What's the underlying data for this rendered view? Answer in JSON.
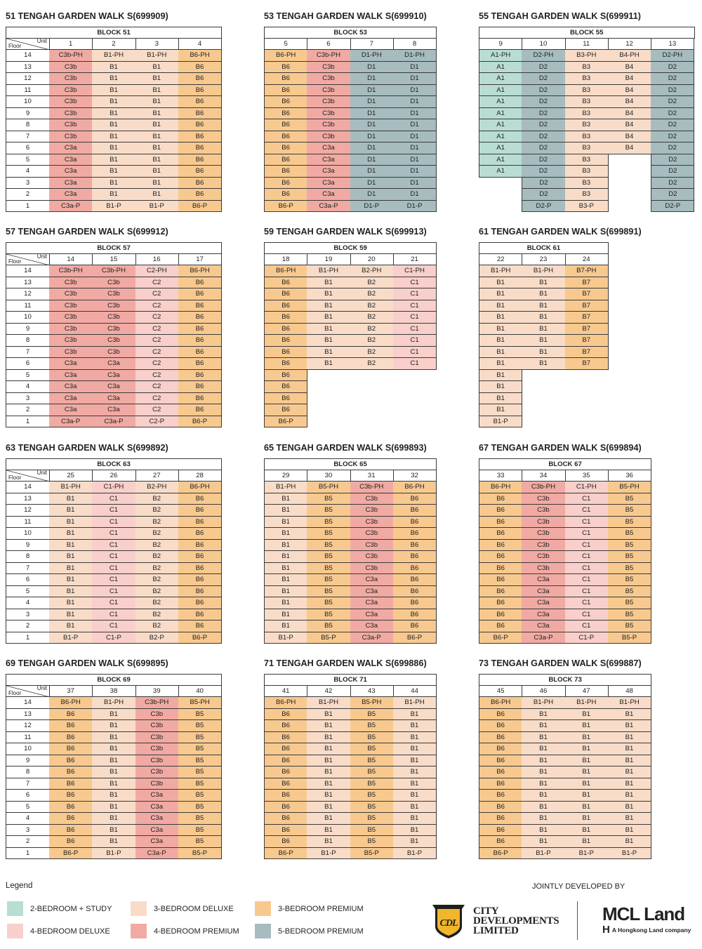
{
  "floors": [
    "14",
    "13",
    "12",
    "11",
    "10",
    "9",
    "8",
    "7",
    "6",
    "5",
    "4",
    "3",
    "2",
    "1"
  ],
  "floor_label": "Floor",
  "unit_label": "Unit",
  "type_colors": {
    "A": "#b9ddd5",
    "B_deluxe": "#f8dcc8",
    "B_premium": "#f8c98f",
    "C_deluxe": "#f8cfca",
    "C_premium": "#f1aaa3",
    "D": "#a6bcbf"
  },
  "sections": [
    {
      "title": "51 TENGAH GARDEN WALK S(699909)",
      "block": "BLOCK 51",
      "floor_col": true,
      "units": [
        {
          "no": "1",
          "cells": [
            "C3b-PH",
            "C3b",
            "C3b",
            "C3b",
            "C3b",
            "C3b",
            "C3b",
            "C3b",
            "C3a",
            "C3a",
            "C3a",
            "C3a",
            "C3a",
            "C3a-P"
          ]
        },
        {
          "no": "2",
          "cells": [
            "B1-PH",
            "B1",
            "B1",
            "B1",
            "B1",
            "B1",
            "B1",
            "B1",
            "B1",
            "B1",
            "B1",
            "B1",
            "B1",
            "B1-P"
          ]
        },
        {
          "no": "3",
          "cells": [
            "B1-PH",
            "B1",
            "B1",
            "B1",
            "B1",
            "B1",
            "B1",
            "B1",
            "B1",
            "B1",
            "B1",
            "B1",
            "B1",
            "B1-P"
          ]
        },
        {
          "no": "4",
          "cells": [
            "B6-PH",
            "B6",
            "B6",
            "B6",
            "B6",
            "B6",
            "B6",
            "B6",
            "B6",
            "B6",
            "B6",
            "B6",
            "B6",
            "B6-P"
          ]
        }
      ]
    },
    {
      "title": "53 TENGAH GARDEN WALK S(699910)",
      "block": "BLOCK 53",
      "floor_col": false,
      "units": [
        {
          "no": "5",
          "cells": [
            "B6-PH",
            "B6",
            "B6",
            "B6",
            "B6",
            "B6",
            "B6",
            "B6",
            "B6",
            "B6",
            "B6",
            "B6",
            "B6",
            "B6-P"
          ]
        },
        {
          "no": "6",
          "cells": [
            "C3b-PH",
            "C3b",
            "C3b",
            "C3b",
            "C3b",
            "C3b",
            "C3b",
            "C3b",
            "C3a",
            "C3a",
            "C3a",
            "C3a",
            "C3a",
            "C3a-P"
          ]
        },
        {
          "no": "7",
          "cells": [
            "D1-PH",
            "D1",
            "D1",
            "D1",
            "D1",
            "D1",
            "D1",
            "D1",
            "D1",
            "D1",
            "D1",
            "D1",
            "D1",
            "D1-P"
          ]
        },
        {
          "no": "8",
          "cells": [
            "D1-PH",
            "D1",
            "D1",
            "D1",
            "D1",
            "D1",
            "D1",
            "D1",
            "D1",
            "D1",
            "D1",
            "D1",
            "D1",
            "D1-P"
          ]
        }
      ]
    },
    {
      "title": "55 TENGAH GARDEN WALK S(699911)",
      "block": "BLOCK 55",
      "floor_col": false,
      "units": [
        {
          "no": "9",
          "cells": [
            "A1-PH",
            "A1",
            "A1",
            "A1",
            "A1",
            "A1",
            "A1",
            "A1",
            "A1",
            "A1",
            "A1",
            null,
            null,
            null
          ]
        },
        {
          "no": "10",
          "cells": [
            "D2-PH",
            "D2",
            "D2",
            "D2",
            "D2",
            "D2",
            "D2",
            "D2",
            "D2",
            "D2",
            "D2",
            "D2",
            "D2",
            "D2-P"
          ]
        },
        {
          "no": "11",
          "cells": [
            "B3-PH",
            "B3",
            "B3",
            "B3",
            "B3",
            "B3",
            "B3",
            "B3",
            "B3",
            "B3",
            "B3",
            "B3",
            "B3",
            "B3-P"
          ]
        },
        {
          "no": "12",
          "cells": [
            "B4-PH",
            "B4",
            "B4",
            "B4",
            "B4",
            "B4",
            "B4",
            "B4",
            "B4",
            null,
            null,
            null,
            null,
            null
          ]
        },
        {
          "no": "13",
          "cells": [
            "D2-PH",
            "D2",
            "D2",
            "D2",
            "D2",
            "D2",
            "D2",
            "D2",
            "D2",
            "D2",
            "D2",
            "D2",
            "D2",
            "D2-P"
          ]
        }
      ]
    },
    {
      "title": "57 TENGAH GARDEN WALK S(699912)",
      "block": "BLOCK 57",
      "floor_col": true,
      "units": [
        {
          "no": "14",
          "cells": [
            "C3b-PH",
            "C3b",
            "C3b",
            "C3b",
            "C3b",
            "C3b",
            "C3b",
            "C3b",
            "C3a",
            "C3a",
            "C3a",
            "C3a",
            "C3a",
            "C3a-P"
          ]
        },
        {
          "no": "15",
          "cells": [
            "C3b-PH",
            "C3b",
            "C3b",
            "C3b",
            "C3b",
            "C3b",
            "C3b",
            "C3b",
            "C3a",
            "C3a",
            "C3a",
            "C3a",
            "C3a",
            "C3a-P"
          ]
        },
        {
          "no": "16",
          "cells": [
            "C2-PH",
            "C2",
            "C2",
            "C2",
            "C2",
            "C2",
            "C2",
            "C2",
            "C2",
            "C2",
            "C2",
            "C2",
            "C2",
            "C2-P"
          ]
        },
        {
          "no": "17",
          "cells": [
            "B6-PH",
            "B6",
            "B6",
            "B6",
            "B6",
            "B6",
            "B6",
            "B6",
            "B6",
            "B6",
            "B6",
            "B6",
            "B6",
            "B6-P"
          ]
        }
      ]
    },
    {
      "title": "59 TENGAH GARDEN WALK S(699913)",
      "block": "BLOCK 59",
      "floor_col": false,
      "units": [
        {
          "no": "18",
          "cells": [
            "B6-PH",
            "B6",
            "B6",
            "B6",
            "B6",
            "B6",
            "B6",
            "B6",
            "B6",
            "B6",
            "B6",
            "B6",
            "B6",
            "B6-P"
          ]
        },
        {
          "no": "19",
          "cells": [
            "B1-PH",
            "B1",
            "B1",
            "B1",
            "B1",
            "B1",
            "B1",
            "B1",
            "B1",
            null,
            null,
            null,
            null,
            null
          ]
        },
        {
          "no": "20",
          "cells": [
            "B2-PH",
            "B2",
            "B2",
            "B2",
            "B2",
            "B2",
            "B2",
            "B2",
            "B2",
            null,
            null,
            null,
            null,
            null
          ]
        },
        {
          "no": "21",
          "cells": [
            "C1-PH",
            "C1",
            "C1",
            "C1",
            "C1",
            "C1",
            "C1",
            "C1",
            "C1",
            null,
            null,
            null,
            null,
            null
          ]
        }
      ]
    },
    {
      "title": "61 TENGAH GARDEN WALK S(699891)",
      "block": "BLOCK 61",
      "floor_col": false,
      "units": [
        {
          "no": "22",
          "cells": [
            "B1-PH",
            "B1",
            "B1",
            "B1",
            "B1",
            "B1",
            "B1",
            "B1",
            "B1",
            "B1",
            "B1",
            "B1",
            "B1",
            "B1-P"
          ]
        },
        {
          "no": "23",
          "cells": [
            "B1-PH",
            "B1",
            "B1",
            "B1",
            "B1",
            "B1",
            "B1",
            "B1",
            "B1",
            null,
            null,
            null,
            null,
            null
          ]
        },
        {
          "no": "24",
          "cells": [
            "B7-PH",
            "B7",
            "B7",
            "B7",
            "B7",
            "B7",
            "B7",
            "B7",
            "B7",
            null,
            null,
            null,
            null,
            null
          ]
        }
      ]
    },
    {
      "title": "63 TENGAH GARDEN WALK S(699892)",
      "block": "BLOCK 63",
      "floor_col": true,
      "units": [
        {
          "no": "25",
          "cells": [
            "B1-PH",
            "B1",
            "B1",
            "B1",
            "B1",
            "B1",
            "B1",
            "B1",
            "B1",
            "B1",
            "B1",
            "B1",
            "B1",
            "B1-P"
          ]
        },
        {
          "no": "26",
          "cells": [
            "C1-PH",
            "C1",
            "C1",
            "C1",
            "C1",
            "C1",
            "C1",
            "C1",
            "C1",
            "C1",
            "C1",
            "C1",
            "C1",
            "C1-P"
          ]
        },
        {
          "no": "27",
          "cells": [
            "B2-PH",
            "B2",
            "B2",
            "B2",
            "B2",
            "B2",
            "B2",
            "B2",
            "B2",
            "B2",
            "B2",
            "B2",
            "B2",
            "B2-P"
          ]
        },
        {
          "no": "28",
          "cells": [
            "B6-PH",
            "B6",
            "B6",
            "B6",
            "B6",
            "B6",
            "B6",
            "B6",
            "B6",
            "B6",
            "B6",
            "B6",
            "B6",
            "B6-P"
          ]
        }
      ]
    },
    {
      "title": "65 TENGAH GARDEN WALK S(699893)",
      "block": "BLOCK 65",
      "floor_col": false,
      "units": [
        {
          "no": "29",
          "cells": [
            "B1-PH",
            "B1",
            "B1",
            "B1",
            "B1",
            "B1",
            "B1",
            "B1",
            "B1",
            "B1",
            "B1",
            "B1",
            "B1",
            "B1-P"
          ]
        },
        {
          "no": "30",
          "cells": [
            "B5-PH",
            "B5",
            "B5",
            "B5",
            "B5",
            "B5",
            "B5",
            "B5",
            "B5",
            "B5",
            "B5",
            "B5",
            "B5",
            "B5-P"
          ]
        },
        {
          "no": "31",
          "cells": [
            "C3b-PH",
            "C3b",
            "C3b",
            "C3b",
            "C3b",
            "C3b",
            "C3b",
            "C3b",
            "C3a",
            "C3a",
            "C3a",
            "C3a",
            "C3a",
            "C3a-P"
          ]
        },
        {
          "no": "32",
          "cells": [
            "B6-PH",
            "B6",
            "B6",
            "B6",
            "B6",
            "B6",
            "B6",
            "B6",
            "B6",
            "B6",
            "B6",
            "B6",
            "B6",
            "B6-P"
          ]
        }
      ]
    },
    {
      "title": "67 TENGAH GARDEN WALK S(699894)",
      "block": "BLOCK 67",
      "floor_col": false,
      "units": [
        {
          "no": "33",
          "cells": [
            "B6-PH",
            "B6",
            "B6",
            "B6",
            "B6",
            "B6",
            "B6",
            "B6",
            "B6",
            "B6",
            "B6",
            "B6",
            "B6",
            "B6-P"
          ]
        },
        {
          "no": "34",
          "cells": [
            "C3b-PH",
            "C3b",
            "C3b",
            "C3b",
            "C3b",
            "C3b",
            "C3b",
            "C3b",
            "C3a",
            "C3a",
            "C3a",
            "C3a",
            "C3a",
            "C3a-P"
          ]
        },
        {
          "no": "35",
          "cells": [
            "C1-PH",
            "C1",
            "C1",
            "C1",
            "C1",
            "C1",
            "C1",
            "C1",
            "C1",
            "C1",
            "C1",
            "C1",
            "C1",
            "C1-P"
          ]
        },
        {
          "no": "36",
          "cells": [
            "B5-PH",
            "B5",
            "B5",
            "B5",
            "B5",
            "B5",
            "B5",
            "B5",
            "B5",
            "B5",
            "B5",
            "B5",
            "B5",
            "B5-P"
          ]
        }
      ]
    },
    {
      "title": "69 TENGAH GARDEN WALK S(699895)",
      "block": "BLOCK 69",
      "floor_col": true,
      "units": [
        {
          "no": "37",
          "cells": [
            "B6-PH",
            "B6",
            "B6",
            "B6",
            "B6",
            "B6",
            "B6",
            "B6",
            "B6",
            "B6",
            "B6",
            "B6",
            "B6",
            "B6-P"
          ]
        },
        {
          "no": "38",
          "cells": [
            "B1-PH",
            "B1",
            "B1",
            "B1",
            "B1",
            "B1",
            "B1",
            "B1",
            "B1",
            "B1",
            "B1",
            "B1",
            "B1",
            "B1-P"
          ]
        },
        {
          "no": "39",
          "cells": [
            "C3b-PH",
            "C3b",
            "C3b",
            "C3b",
            "C3b",
            "C3b",
            "C3b",
            "C3b",
            "C3a",
            "C3a",
            "C3a",
            "C3a",
            "C3a",
            "C3a-P"
          ]
        },
        {
          "no": "40",
          "cells": [
            "B5-PH",
            "B5",
            "B5",
            "B5",
            "B5",
            "B5",
            "B5",
            "B5",
            "B5",
            "B5",
            "B5",
            "B5",
            "B5",
            "B5-P"
          ]
        }
      ]
    },
    {
      "title": "71 TENGAH GARDEN WALK S(699886)",
      "block": "BLOCK 71",
      "floor_col": false,
      "units": [
        {
          "no": "41",
          "cells": [
            "B6-PH",
            "B6",
            "B6",
            "B6",
            "B6",
            "B6",
            "B6",
            "B6",
            "B6",
            "B6",
            "B6",
            "B6",
            "B6",
            "B6-P"
          ]
        },
        {
          "no": "42",
          "cells": [
            "B1-PH",
            "B1",
            "B1",
            "B1",
            "B1",
            "B1",
            "B1",
            "B1",
            "B1",
            "B1",
            "B1",
            "B1",
            "B1",
            "B1-P"
          ]
        },
        {
          "no": "43",
          "cells": [
            "B5-PH",
            "B5",
            "B5",
            "B5",
            "B5",
            "B5",
            "B5",
            "B5",
            "B5",
            "B5",
            "B5",
            "B5",
            "B5",
            "B5-P"
          ]
        },
        {
          "no": "44",
          "cells": [
            "B1-PH",
            "B1",
            "B1",
            "B1",
            "B1",
            "B1",
            "B1",
            "B1",
            "B1",
            "B1",
            "B1",
            "B1",
            "B1",
            "B1-P"
          ]
        }
      ]
    },
    {
      "title": "73 TENGAH GARDEN WALK S(699887)",
      "block": "BLOCK 73",
      "floor_col": false,
      "units": [
        {
          "no": "45",
          "cells": [
            "B6-PH",
            "B6",
            "B6",
            "B6",
            "B6",
            "B6",
            "B6",
            "B6",
            "B6",
            "B6",
            "B6",
            "B6",
            "B6",
            "B6-P"
          ]
        },
        {
          "no": "46",
          "cells": [
            "B1-PH",
            "B1",
            "B1",
            "B1",
            "B1",
            "B1",
            "B1",
            "B1",
            "B1",
            "B1",
            "B1",
            "B1",
            "B1",
            "B1-P"
          ]
        },
        {
          "no": "47",
          "cells": [
            "B1-PH",
            "B1",
            "B1",
            "B1",
            "B1",
            "B1",
            "B1",
            "B1",
            "B1",
            "B1",
            "B1",
            "B1",
            "B1",
            "B1-P"
          ]
        },
        {
          "no": "48",
          "cells": [
            "B1-PH",
            "B1",
            "B1",
            "B1",
            "B1",
            "B1",
            "B1",
            "B1",
            "B1",
            "B1",
            "B1",
            "B1",
            "B1",
            "B1-P"
          ]
        }
      ]
    }
  ],
  "legend": {
    "title": "Legend",
    "items": [
      {
        "label": "2-BEDROOM + STUDY",
        "color": "#b9ddd5"
      },
      {
        "label": "3-BEDROOM DELUXE",
        "color": "#f8dcc8"
      },
      {
        "label": "3-BEDROOM PREMIUM",
        "color": "#f8c98f"
      },
      {
        "label": "4-BEDROOM DELUXE",
        "color": "#f8cfca"
      },
      {
        "label": "4-BEDROOM PREMIUM",
        "color": "#f1aaa3"
      },
      {
        "label": "5-BEDROOM PREMIUM",
        "color": "#a6bcbf"
      }
    ]
  },
  "developers": {
    "heading": "JOINTLY DEVELOPED BY",
    "cdl": {
      "line1": "CITY",
      "line2": "DEVELOPMENTS",
      "line3": "LIMITED",
      "mark": "CDL"
    },
    "mcl": {
      "name": "MCL Land",
      "tagline": "A Hongkong Land company",
      "mark": "H"
    }
  }
}
